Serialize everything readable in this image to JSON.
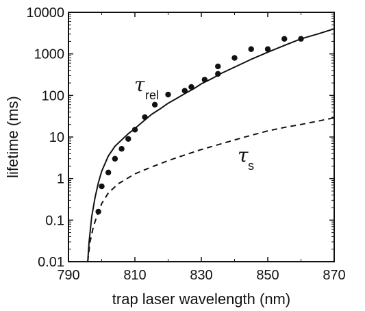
{
  "chart_data": {
    "type": "line",
    "xlabel": "trap laser wavelength (nm)",
    "ylabel": "lifetime (ms)",
    "xlim": [
      790,
      870
    ],
    "ylim": [
      0.01,
      10000
    ],
    "yscale": "log",
    "x_ticks": [
      "790",
      "810",
      "830",
      "850",
      "870"
    ],
    "y_ticks": [
      "0.01",
      "0.1",
      "1",
      "10",
      "100",
      "1000",
      "10000"
    ],
    "grid": false,
    "legend": "none",
    "series": [
      {
        "name_symbol": "τ",
        "name_subscript": "rel",
        "style": "solid",
        "x": [
          795.8,
          796.2,
          797,
          798,
          799,
          800,
          802,
          804,
          806,
          808,
          810,
          812,
          815,
          818,
          820,
          822,
          825,
          828,
          830,
          833,
          836,
          840,
          845,
          850,
          855,
          860,
          865,
          870
        ],
        "y": [
          0.01,
          0.03,
          0.12,
          0.35,
          0.8,
          1.5,
          3.5,
          6,
          8.5,
          12,
          16,
          22,
          35,
          50,
          65,
          80,
          110,
          150,
          190,
          250,
          340,
          480,
          740,
          1100,
          1600,
          2300,
          3000,
          4000
        ]
      },
      {
        "name_symbol": "τ",
        "name_subscript": "s",
        "style": "dashed",
        "x": [
          795.8,
          796.5,
          797.5,
          798.5,
          800,
          802,
          805,
          810,
          815,
          820,
          825,
          830,
          835,
          840,
          845,
          850,
          855,
          860,
          865,
          870
        ],
        "y": [
          0.01,
          0.03,
          0.07,
          0.12,
          0.25,
          0.45,
          0.75,
          1.3,
          1.9,
          2.7,
          3.7,
          5,
          6.5,
          8.5,
          11,
          14,
          17,
          20,
          24,
          29
        ]
      },
      {
        "name": "data",
        "style": "markers",
        "x": [
          799,
          800,
          802,
          804,
          806,
          808,
          810,
          813,
          816,
          820,
          825,
          827,
          831,
          835,
          835,
          840,
          845,
          850,
          855,
          860
        ],
        "y": [
          0.16,
          0.65,
          1.4,
          3,
          5.2,
          9,
          15,
          30,
          60,
          105,
          130,
          160,
          240,
          330,
          500,
          800,
          1300,
          1300,
          2300,
          2300
        ]
      }
    ]
  }
}
